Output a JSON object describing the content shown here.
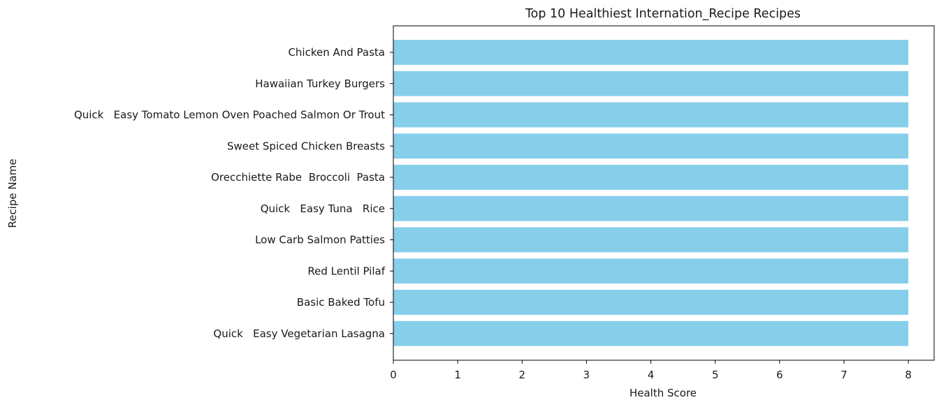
{
  "chart_data": {
    "type": "bar",
    "orientation": "horizontal",
    "title": "Top 10 Healthiest Internation_Recipe Recipes",
    "xlabel": "Health Score",
    "ylabel": "Recipe Name",
    "categories": [
      "Chicken And Pasta",
      "Hawaiian Turkey Burgers",
      "Quick   Easy Tomato Lemon Oven Poached Salmon Or Trout",
      "Sweet Spiced Chicken Breasts",
      "Orecchiette Rabe  Broccoli  Pasta",
      "Quick   Easy Tuna   Rice",
      "Low Carb Salmon Patties",
      "Red Lentil Pilaf",
      "Basic Baked Tofu",
      "Quick   Easy Vegetarian Lasagna"
    ],
    "values": [
      8,
      8,
      8,
      8,
      8,
      8,
      8,
      8,
      8,
      8
    ],
    "xlim": [
      0,
      8.4
    ],
    "xticks": [
      0,
      1,
      2,
      3,
      4,
      5,
      6,
      7,
      8
    ],
    "grid": false,
    "legend": "none",
    "bar_color": "#87CEEB"
  }
}
